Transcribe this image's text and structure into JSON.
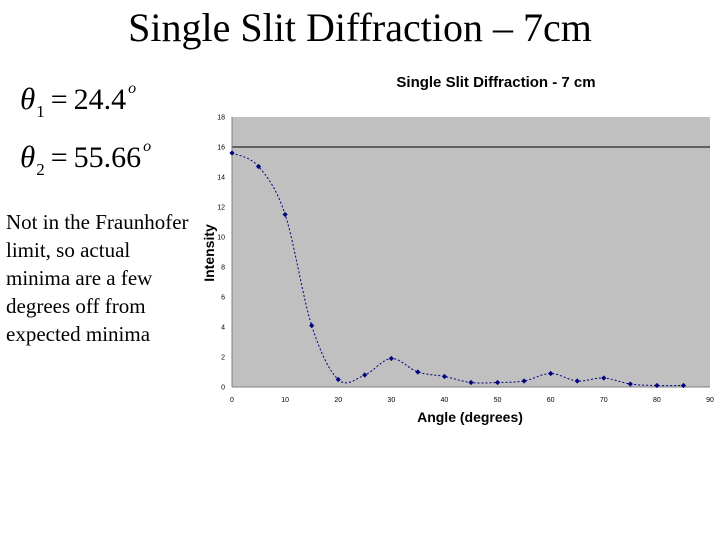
{
  "slide": {
    "title": "Single Slit Diffraction – 7cm",
    "equations": [
      {
        "symbol": "θ",
        "subscript": "1",
        "value": "24.4",
        "unit": "o"
      },
      {
        "symbol": "θ",
        "subscript": "2",
        "value": "55.66",
        "unit": "o"
      }
    ],
    "note": "Not in the Fraunhofer limit, so actual minima are a few degrees off from expected minima"
  },
  "colors": {
    "plot_background": "#c0c0c0",
    "series": "#000080",
    "reference_line": "#000000"
  },
  "chart_data": {
    "type": "line",
    "title": "Single Slit Diffraction - 7 cm",
    "xlabel": "Angle (degrees)",
    "ylabel": "Intensity",
    "xlim": [
      0,
      90
    ],
    "ylim": [
      0,
      18
    ],
    "xticks": [
      0,
      10,
      20,
      30,
      40,
      50,
      60,
      70,
      80,
      90
    ],
    "yticks": [
      0,
      2,
      4,
      6,
      8,
      10,
      12,
      14,
      16,
      18
    ],
    "grid": false,
    "legend": "none",
    "reference_line_y": 16,
    "series": [
      {
        "x": [
          0,
          5,
          10,
          15,
          20,
          25,
          30,
          35,
          40,
          45,
          50,
          55,
          60,
          65,
          70,
          75,
          80,
          85
        ],
        "y": [
          15.6,
          14.7,
          11.5,
          4.1,
          0.5,
          0.8,
          1.9,
          1.0,
          0.7,
          0.3,
          0.3,
          0.4,
          0.9,
          0.4,
          0.6,
          0.2,
          0.1,
          0.1
        ]
      }
    ]
  }
}
